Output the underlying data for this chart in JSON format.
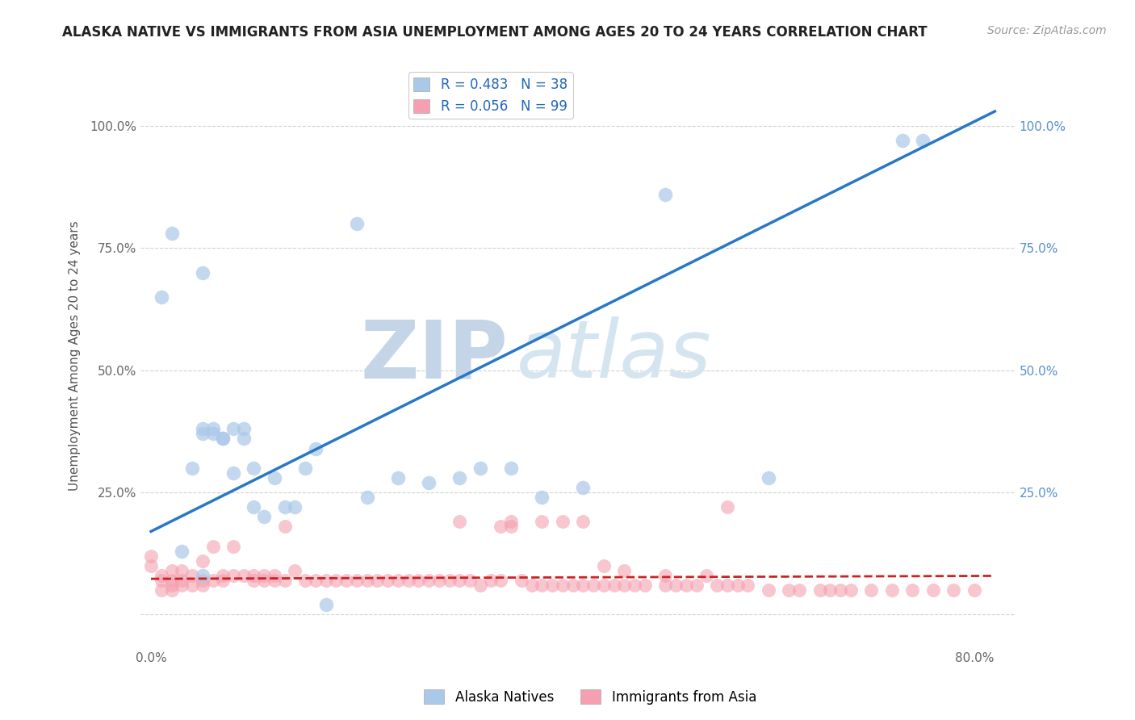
{
  "title": "ALASKA NATIVE VS IMMIGRANTS FROM ASIA UNEMPLOYMENT AMONG AGES 20 TO 24 YEARS CORRELATION CHART",
  "source": "Source: ZipAtlas.com",
  "xlabel_ticks": [
    "0.0%",
    "",
    "",
    "",
    "80.0%"
  ],
  "xlabel_vals": [
    0.0,
    0.2,
    0.4,
    0.6,
    0.8
  ],
  "ylabel_ticks_left": [
    "",
    "25.0%",
    "50.0%",
    "75.0%",
    "100.0%"
  ],
  "ylabel_ticks_right": [
    "",
    "25.0%",
    "50.0%",
    "75.0%",
    "100.0%"
  ],
  "ylabel_vals": [
    0.0,
    0.25,
    0.5,
    0.75,
    1.0
  ],
  "xlim": [
    -0.01,
    0.84
  ],
  "ylim": [
    -0.07,
    1.13
  ],
  "blue_R": 0.483,
  "blue_N": 38,
  "pink_R": 0.056,
  "pink_N": 99,
  "blue_color": "#aac8e8",
  "pink_color": "#f4a0b0",
  "blue_line_color": "#2878c8",
  "pink_line_color": "#cc2222",
  "watermark_zip": "ZIP",
  "watermark_atlas": "atlas",
  "watermark_color": "#d0dff0",
  "legend_label_blue": "Alaska Natives",
  "legend_label_pink": "Immigrants from Asia",
  "blue_scatter_x": [
    0.01,
    0.02,
    0.03,
    0.04,
    0.05,
    0.05,
    0.05,
    0.05,
    0.06,
    0.06,
    0.07,
    0.07,
    0.08,
    0.08,
    0.09,
    0.09,
    0.1,
    0.1,
    0.11,
    0.12,
    0.13,
    0.14,
    0.15,
    0.16,
    0.17,
    0.2,
    0.21,
    0.24,
    0.27,
    0.3,
    0.32,
    0.35,
    0.38,
    0.42,
    0.5,
    0.6,
    0.73,
    0.75
  ],
  "blue_scatter_y": [
    0.65,
    0.78,
    0.13,
    0.3,
    0.08,
    0.37,
    0.38,
    0.7,
    0.37,
    0.38,
    0.36,
    0.36,
    0.29,
    0.38,
    0.36,
    0.38,
    0.22,
    0.3,
    0.2,
    0.28,
    0.22,
    0.22,
    0.3,
    0.34,
    0.02,
    0.8,
    0.24,
    0.28,
    0.27,
    0.28,
    0.3,
    0.3,
    0.24,
    0.26,
    0.86,
    0.28,
    0.97,
    0.97
  ],
  "pink_scatter_x": [
    0.0,
    0.0,
    0.01,
    0.01,
    0.01,
    0.02,
    0.02,
    0.02,
    0.02,
    0.03,
    0.03,
    0.03,
    0.04,
    0.04,
    0.05,
    0.05,
    0.05,
    0.06,
    0.06,
    0.07,
    0.07,
    0.08,
    0.08,
    0.09,
    0.1,
    0.1,
    0.11,
    0.11,
    0.12,
    0.12,
    0.13,
    0.13,
    0.14,
    0.15,
    0.16,
    0.17,
    0.18,
    0.19,
    0.2,
    0.21,
    0.22,
    0.23,
    0.24,
    0.25,
    0.26,
    0.27,
    0.28,
    0.29,
    0.3,
    0.31,
    0.32,
    0.33,
    0.34,
    0.35,
    0.36,
    0.37,
    0.38,
    0.39,
    0.4,
    0.41,
    0.42,
    0.43,
    0.44,
    0.45,
    0.46,
    0.47,
    0.48,
    0.5,
    0.51,
    0.52,
    0.53,
    0.55,
    0.56,
    0.57,
    0.58,
    0.6,
    0.62,
    0.63,
    0.65,
    0.66,
    0.67,
    0.68,
    0.7,
    0.72,
    0.74,
    0.76,
    0.78,
    0.8,
    0.3,
    0.34,
    0.35,
    0.38,
    0.4,
    0.42,
    0.44,
    0.46,
    0.5,
    0.54,
    0.56
  ],
  "pink_scatter_y": [
    0.1,
    0.12,
    0.05,
    0.07,
    0.08,
    0.05,
    0.06,
    0.07,
    0.09,
    0.06,
    0.07,
    0.09,
    0.06,
    0.08,
    0.06,
    0.07,
    0.11,
    0.07,
    0.14,
    0.07,
    0.08,
    0.08,
    0.14,
    0.08,
    0.07,
    0.08,
    0.07,
    0.08,
    0.07,
    0.08,
    0.07,
    0.18,
    0.09,
    0.07,
    0.07,
    0.07,
    0.07,
    0.07,
    0.07,
    0.07,
    0.07,
    0.07,
    0.07,
    0.07,
    0.07,
    0.07,
    0.07,
    0.07,
    0.07,
    0.07,
    0.06,
    0.07,
    0.07,
    0.18,
    0.07,
    0.06,
    0.06,
    0.06,
    0.06,
    0.06,
    0.06,
    0.06,
    0.06,
    0.06,
    0.06,
    0.06,
    0.06,
    0.06,
    0.06,
    0.06,
    0.06,
    0.06,
    0.06,
    0.06,
    0.06,
    0.05,
    0.05,
    0.05,
    0.05,
    0.05,
    0.05,
    0.05,
    0.05,
    0.05,
    0.05,
    0.05,
    0.05,
    0.05,
    0.19,
    0.18,
    0.19,
    0.19,
    0.19,
    0.19,
    0.1,
    0.09,
    0.08,
    0.08,
    0.22
  ],
  "blue_trend_x": [
    0.0,
    0.82
  ],
  "blue_trend_y": [
    0.17,
    1.03
  ],
  "pink_trend_x": [
    0.0,
    0.82
  ],
  "pink_trend_y": [
    0.073,
    0.079
  ]
}
